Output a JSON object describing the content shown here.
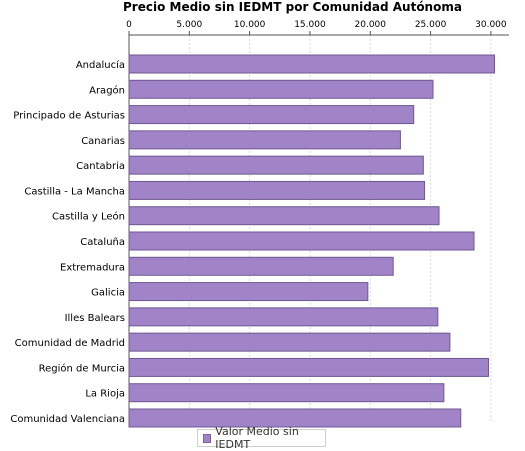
{
  "chart_data": {
    "type": "bar",
    "orientation": "horizontal",
    "title": "Precio Medio sin IEDMT por Comunidad Autónoma",
    "xlabel": "",
    "ylabel": "",
    "xlim": [
      0,
      31500
    ],
    "x_ticks": [
      0,
      5000,
      10000,
      15000,
      20000,
      25000,
      30000
    ],
    "x_tick_labels": [
      "0",
      "5.000",
      "10.000",
      "15.000",
      "20.000",
      "25.000",
      "30.000"
    ],
    "x_axis_position": "top",
    "grid": true,
    "legend_position": "bottom",
    "bar_color": "#a183c8",
    "categories": [
      "Andalucía",
      "Aragón",
      "Principado de Asturias",
      "Canarias",
      "Cantabria",
      "Castilla - La Mancha",
      "Castilla y León",
      "Cataluña",
      "Extremadura",
      "Galicia",
      "Illes Balears",
      "Comunidad de Madrid",
      "Región de Murcia",
      "La Rioja",
      "Comunidad Valenciana"
    ],
    "series": [
      {
        "name": "Valor Medio sin IEDMT",
        "values": [
          30300,
          25200,
          23600,
          22500,
          24400,
          24500,
          25700,
          28600,
          21900,
          19800,
          25600,
          26600,
          29800,
          26100,
          27500
        ]
      }
    ]
  }
}
